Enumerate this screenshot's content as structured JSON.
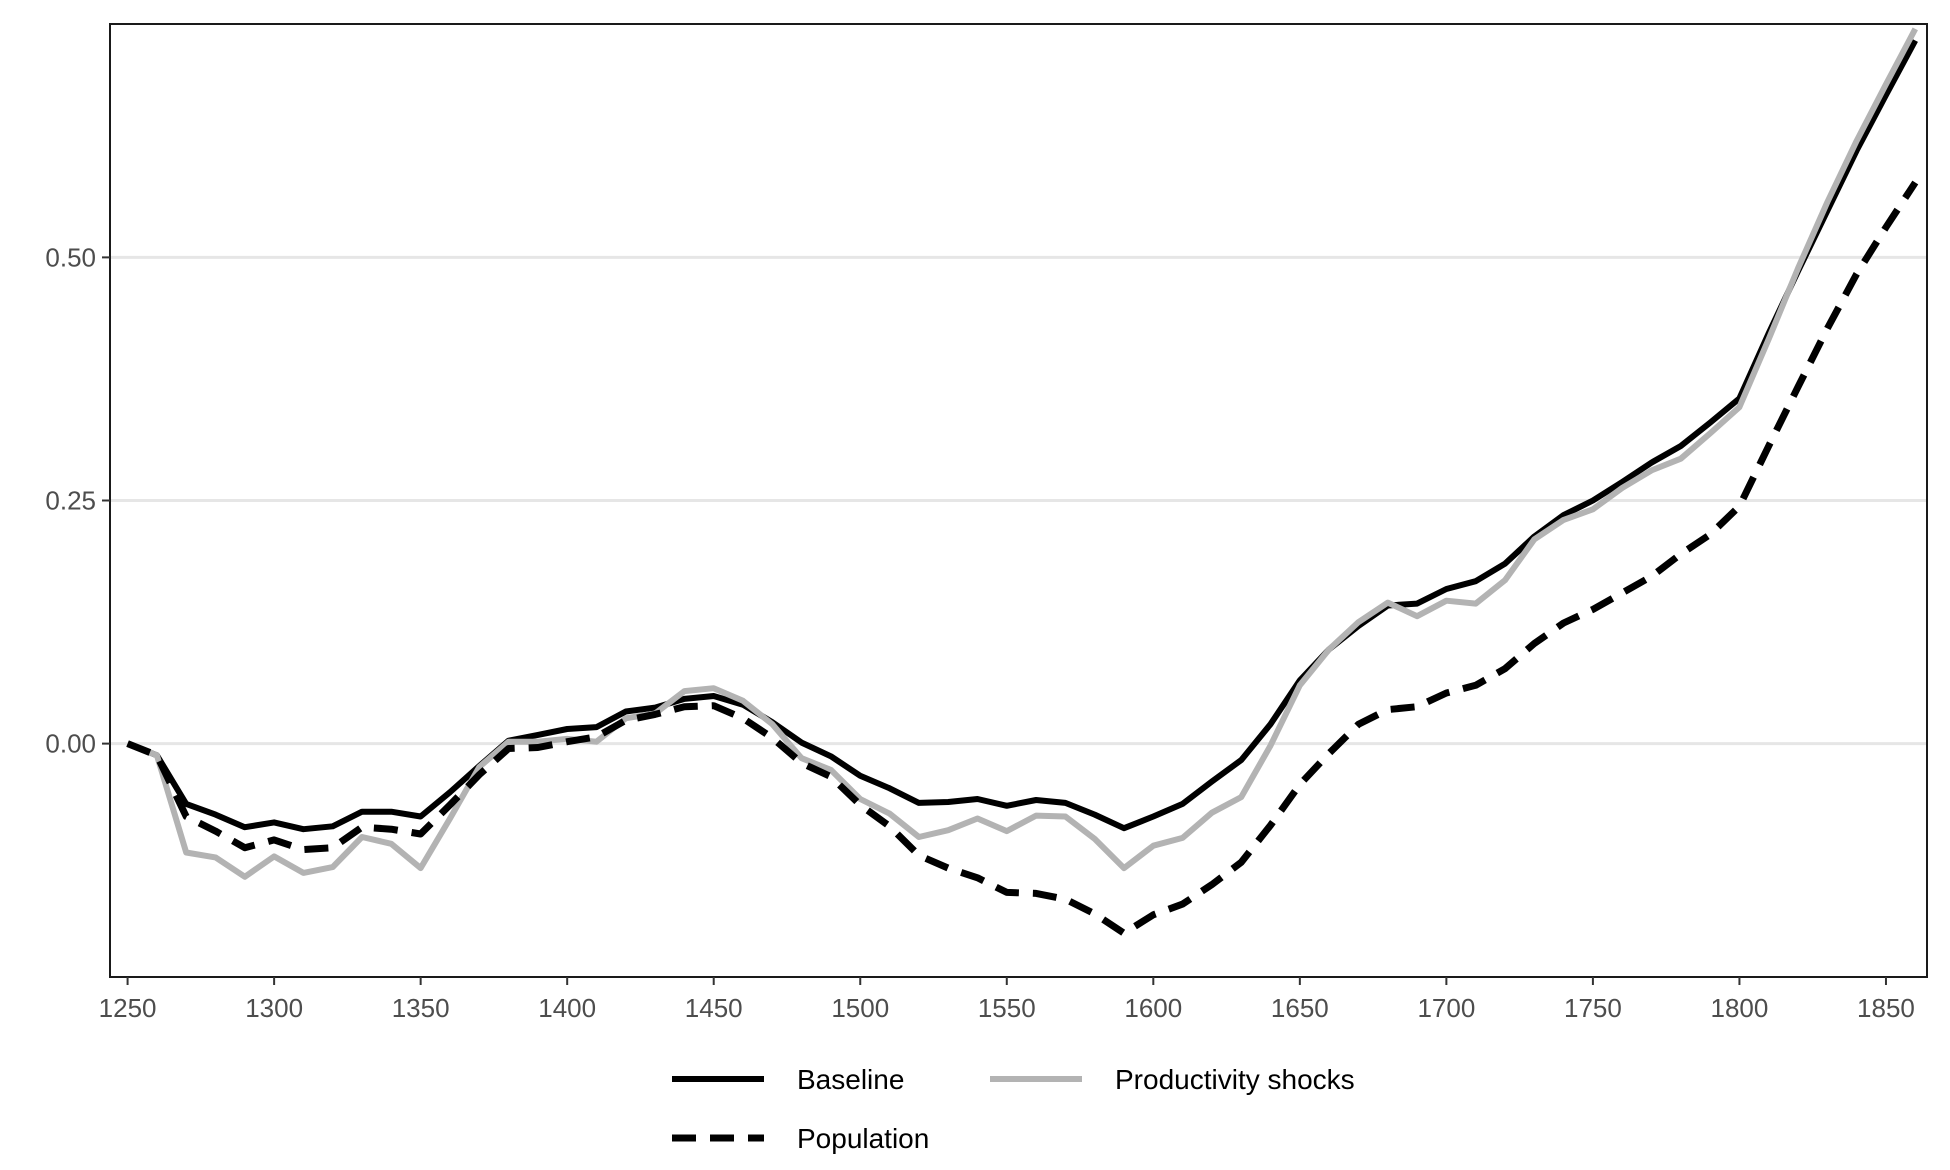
{
  "chart_data": {
    "type": "line",
    "title": "",
    "xlabel": "",
    "ylabel": "",
    "xlim": [
      1244,
      1864
    ],
    "ylim": [
      -0.24,
      0.74
    ],
    "x_ticks": [
      1250,
      1300,
      1350,
      1400,
      1450,
      1500,
      1550,
      1600,
      1650,
      1700,
      1750,
      1800,
      1850
    ],
    "y_ticks": [
      0.0,
      0.25,
      0.5
    ],
    "y_tick_labels": [
      "0.00",
      "0.25",
      "0.50"
    ],
    "grid": "horizontal major",
    "legend_position": "bottom",
    "x": [
      1250,
      1260,
      1270,
      1280,
      1290,
      1300,
      1310,
      1320,
      1330,
      1340,
      1350,
      1360,
      1370,
      1380,
      1390,
      1400,
      1410,
      1420,
      1430,
      1440,
      1450,
      1460,
      1470,
      1480,
      1490,
      1500,
      1510,
      1520,
      1530,
      1540,
      1550,
      1560,
      1570,
      1580,
      1590,
      1600,
      1610,
      1620,
      1630,
      1640,
      1650,
      1660,
      1670,
      1680,
      1690,
      1700,
      1710,
      1720,
      1730,
      1740,
      1750,
      1760,
      1770,
      1780,
      1790,
      1800,
      1810,
      1820,
      1830,
      1840,
      1850,
      1860
    ],
    "series": [
      {
        "name": "Baseline",
        "color": "#000000",
        "dash": "solid",
        "values": [
          0.0,
          -0.012,
          -0.062,
          -0.073,
          -0.086,
          -0.081,
          -0.088,
          -0.085,
          -0.07,
          -0.07,
          -0.075,
          -0.05,
          -0.023,
          0.003,
          0.009,
          0.015,
          0.017,
          0.033,
          0.037,
          0.046,
          0.049,
          0.04,
          0.022,
          0.001,
          -0.013,
          -0.033,
          -0.046,
          -0.061,
          -0.06,
          -0.057,
          -0.064,
          -0.058,
          -0.061,
          -0.073,
          -0.087,
          -0.075,
          -0.062,
          -0.039,
          -0.017,
          0.02,
          0.065,
          0.097,
          0.121,
          0.142,
          0.144,
          0.159,
          0.167,
          0.185,
          0.213,
          0.235,
          0.25,
          0.269,
          0.289,
          0.306,
          0.33,
          0.355,
          0.422,
          0.486,
          0.548,
          0.61,
          0.667,
          0.723
        ]
      },
      {
        "name": "Productivity shocks",
        "color": "#b3b3b3",
        "dash": "solid",
        "values": [
          0.0,
          -0.012,
          -0.112,
          -0.117,
          -0.137,
          -0.116,
          -0.133,
          -0.127,
          -0.096,
          -0.103,
          -0.128,
          -0.077,
          -0.024,
          0.002,
          0.002,
          0.005,
          0.002,
          0.026,
          0.031,
          0.054,
          0.057,
          0.044,
          0.02,
          -0.015,
          -0.027,
          -0.057,
          -0.072,
          -0.096,
          -0.089,
          -0.077,
          -0.09,
          -0.074,
          -0.075,
          -0.098,
          -0.128,
          -0.105,
          -0.097,
          -0.071,
          -0.055,
          -0.002,
          0.06,
          0.097,
          0.125,
          0.145,
          0.131,
          0.147,
          0.144,
          0.168,
          0.21,
          0.23,
          0.241,
          0.263,
          0.281,
          0.293,
          0.319,
          0.346,
          0.416,
          0.489,
          0.557,
          0.62,
          0.678,
          0.735
        ]
      },
      {
        "name": "Population",
        "color": "#000000",
        "dash": "dashed",
        "values": [
          0.0,
          -0.012,
          -0.075,
          -0.09,
          -0.107,
          -0.099,
          -0.109,
          -0.107,
          -0.086,
          -0.088,
          -0.093,
          -0.063,
          -0.032,
          -0.005,
          -0.004,
          0.002,
          0.007,
          0.024,
          0.03,
          0.038,
          0.039,
          0.026,
          0.006,
          -0.02,
          -0.034,
          -0.063,
          -0.085,
          -0.115,
          -0.128,
          -0.138,
          -0.153,
          -0.154,
          -0.16,
          -0.175,
          -0.195,
          -0.176,
          -0.165,
          -0.145,
          -0.122,
          -0.084,
          -0.042,
          -0.01,
          0.02,
          0.035,
          0.038,
          0.052,
          0.06,
          0.077,
          0.103,
          0.124,
          0.138,
          0.155,
          0.172,
          0.195,
          0.215,
          0.244,
          0.306,
          0.367,
          0.427,
          0.483,
          0.531,
          0.577
        ]
      }
    ]
  }
}
